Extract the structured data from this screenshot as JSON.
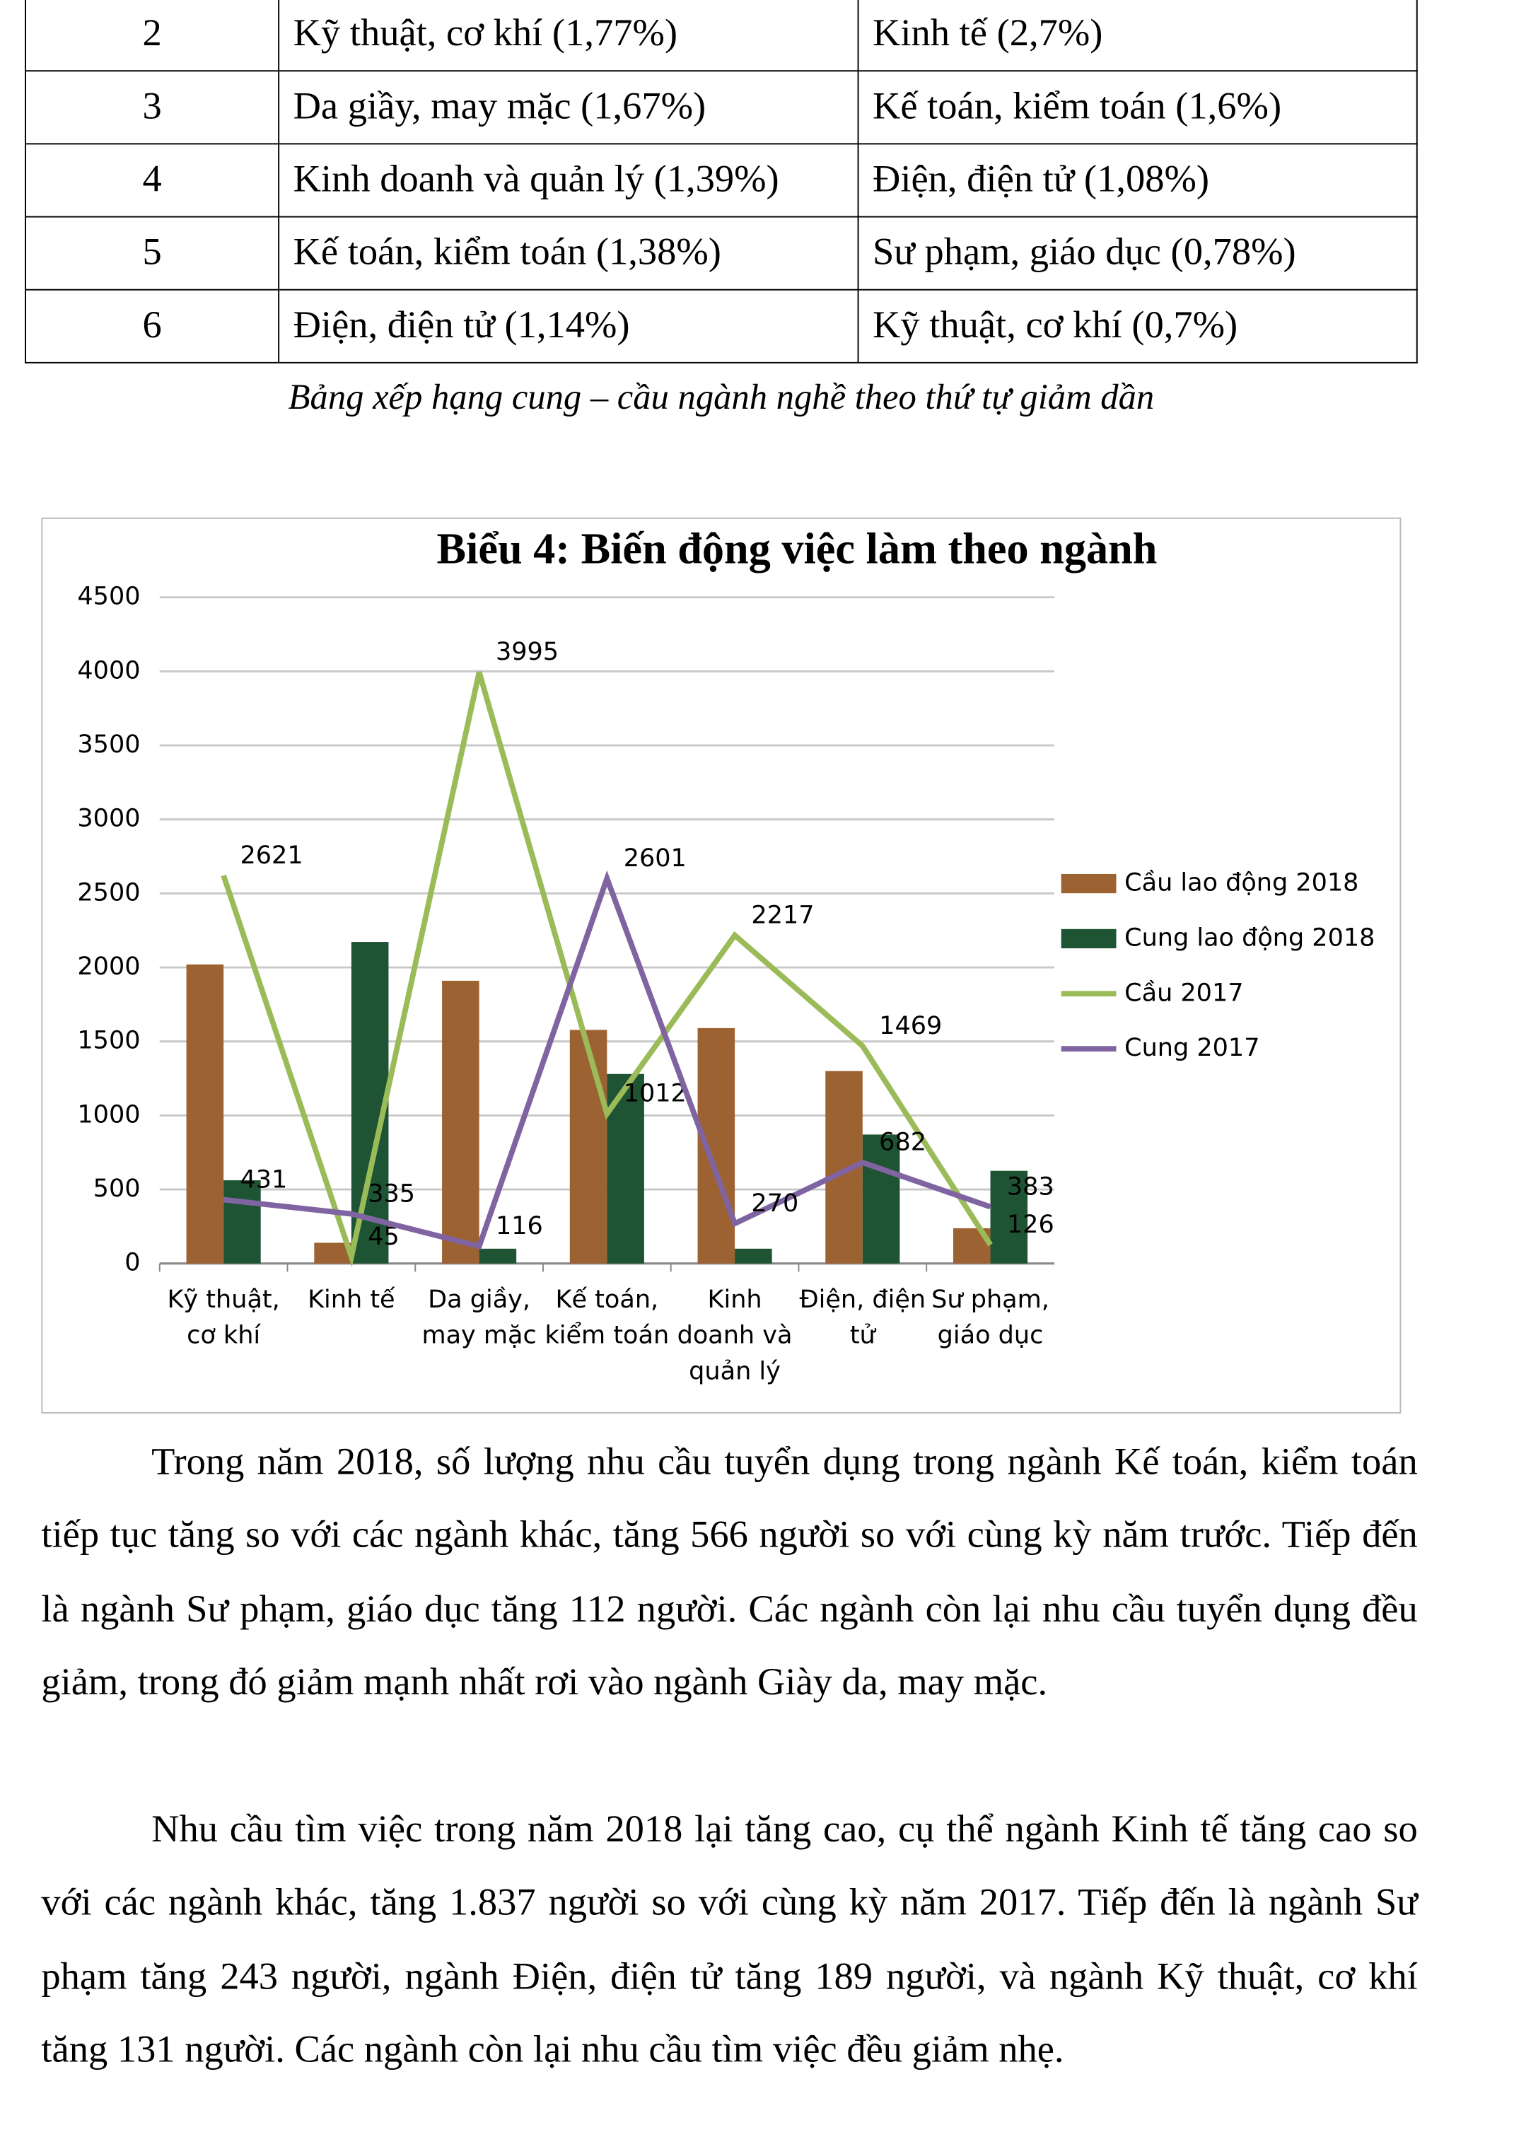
{
  "table": {
    "rows": [
      [
        "2",
        "Kỹ thuật, cơ khí (1,77%)",
        "Kinh tế (2,7%)"
      ],
      [
        "3",
        "Da giầy, may mặc (1,67%)",
        "Kế toán, kiểm toán (1,6%)"
      ],
      [
        "4",
        "Kinh doanh và quản lý (1,39%)",
        "Điện, điện tử (1,08%)"
      ],
      [
        "5",
        "Kế toán, kiểm toán (1,38%)",
        "Sư phạm, giáo dục (0,78%)"
      ],
      [
        "6",
        "Điện, điện tử (1,14%)",
        "Kỹ thuật, cơ khí (0,7%)"
      ]
    ],
    "caption": "Bảng xếp hạng cung – cầu ngành nghề theo thứ tự giảm dần"
  },
  "chart_data": {
    "type": "bar-line",
    "title": "Biểu 4: Biến động việc làm theo ngành",
    "categories": [
      "Kỹ thuật, cơ khí",
      "Kinh tế",
      "Da giầy, may mặc",
      "Kế toán, kiểm toán",
      "Kinh doanh và quản lý",
      "Điện, điện tử",
      "Sư phạm, giáo dục"
    ],
    "series": [
      {
        "name": "Cầu lao động 2018",
        "type": "bar",
        "color": "#9c6232",
        "values": [
          2020,
          140,
          1910,
          1578,
          1590,
          1300,
          238
        ]
      },
      {
        "name": "Cung lao động 2018",
        "type": "bar",
        "color": "#1e5433",
        "values": [
          562,
          2172,
          100,
          1280,
          100,
          871,
          626
        ]
      },
      {
        "name": "Cầu 2017",
        "type": "line",
        "color": "#9bbb59",
        "values": [
          2621,
          45,
          3995,
          1012,
          2217,
          1469,
          126
        ]
      },
      {
        "name": "Cung 2017",
        "type": "line",
        "color": "#8064a2",
        "values": [
          431,
          335,
          116,
          2601,
          270,
          682,
          383
        ]
      }
    ],
    "ylim": [
      0,
      4500
    ],
    "yticks": [
      0,
      500,
      1000,
      1500,
      2000,
      2500,
      3000,
      3500,
      4000,
      4500
    ],
    "grid": true,
    "legend": "right"
  },
  "paragraphs": [
    "Trong năm 2018, số lượng nhu cầu tuyển dụng trong ngành Kế toán, kiểm toán  tiếp tục tăng so với các ngành khác, tăng 566 người so với cùng kỳ năm trước. Tiếp đến là ngành Sư phạm, giáo dục tăng 112 người. Các ngành còn lại nhu cầu tuyển dụng đều giảm, trong đó giảm mạnh nhất rơi vào ngành Giày da, may mặc.",
    "Nhu cầu tìm việc trong năm 2018 lại tăng cao, cụ thể ngành Kinh tế tăng cao so với các ngành khác, tăng 1.837 người so với cùng kỳ năm 2017. Tiếp đến là ngành Sư phạm tăng 243 người, ngành Điện, điện tử tăng 189 người, và ngành Kỹ thuật, cơ khí tăng 131 người. Các ngành còn lại nhu cầu tìm việc đều giảm nhẹ."
  ]
}
